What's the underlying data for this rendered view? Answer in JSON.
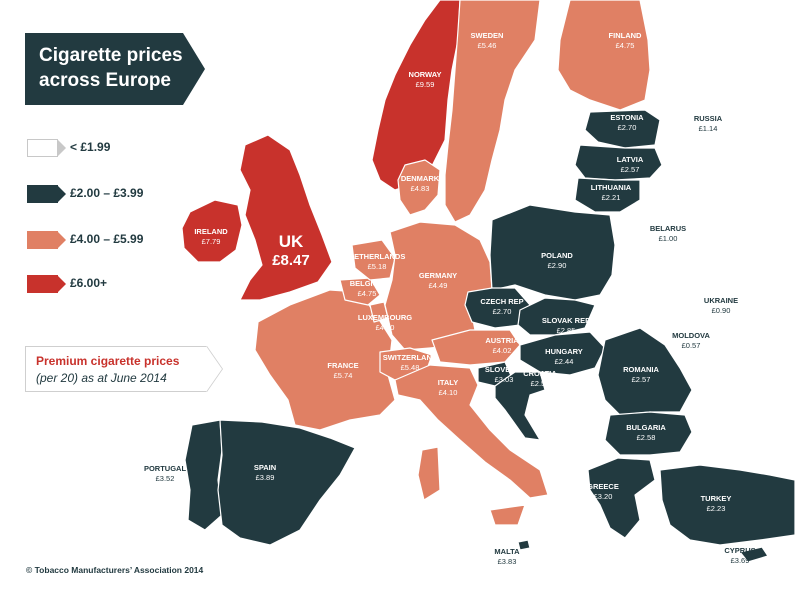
{
  "title": "Cigarette prices across Europe",
  "colors": {
    "under_1_99": "#ffffff",
    "from_2_00_to_3_99": "#223a40",
    "from_4_00_to_5_99": "#e08064",
    "over_6_00": "#c8322c",
    "border": "#c8c8c8",
    "text_dark": "#223a40"
  },
  "legend": [
    {
      "label": "< £1.99",
      "color": "#ffffff"
    },
    {
      "label": "£2.00 – £3.99",
      "color": "#223a40"
    },
    {
      "label": "£4.00 – £5.99",
      "color": "#e08064"
    },
    {
      "label": "£6.00+",
      "color": "#c8322c"
    }
  ],
  "note": {
    "title": "Premium cigarette prices",
    "subtitle": "(per 20) as at June 2014"
  },
  "copyright": "© Tobacco Manufacturers’ Association 2014",
  "countries": [
    {
      "name": "NORWAY",
      "price": "£9.59",
      "band": "over_6_00"
    },
    {
      "name": "SWEDEN",
      "price": "£5.46",
      "band": "from_4_00_to_5_99"
    },
    {
      "name": "FINLAND",
      "price": "£4.75",
      "band": "from_4_00_to_5_99"
    },
    {
      "name": "RUSSIA",
      "price": "£1.14",
      "band": "under_1_99"
    },
    {
      "name": "ESTONIA",
      "price": "£2.70",
      "band": "from_2_00_to_3_99"
    },
    {
      "name": "LATVIA",
      "price": "£2.57",
      "band": "from_2_00_to_3_99"
    },
    {
      "name": "LITHUANIA",
      "price": "£2.21",
      "band": "from_2_00_to_3_99"
    },
    {
      "name": "DENMARK",
      "price": "£4.83",
      "band": "from_4_00_to_5_99"
    },
    {
      "name": "IRELAND",
      "price": "£7.79",
      "band": "over_6_00"
    },
    {
      "name": "UK",
      "price": "£8.47",
      "band": "over_6_00"
    },
    {
      "name": "NETHERLANDS",
      "price": "£5.18",
      "band": "from_4_00_to_5_99"
    },
    {
      "name": "BELGIUM",
      "price": "£4.75",
      "band": "from_4_00_to_5_99"
    },
    {
      "name": "LUXEMBOURG",
      "price": "£4.10",
      "band": "from_4_00_to_5_99"
    },
    {
      "name": "GERMANY",
      "price": "£4.49",
      "band": "from_4_00_to_5_99"
    },
    {
      "name": "POLAND",
      "price": "£2.90",
      "band": "from_2_00_to_3_99"
    },
    {
      "name": "BELARUS",
      "price": "£1.00",
      "band": "under_1_99"
    },
    {
      "name": "UKRAINE",
      "price": "£0.90",
      "band": "under_1_99"
    },
    {
      "name": "CZECH REP",
      "price": "£2.70",
      "band": "from_2_00_to_3_99"
    },
    {
      "name": "SLOVAK REP",
      "price": "£2.85",
      "band": "from_2_00_to_3_99"
    },
    {
      "name": "MOLDOVA",
      "price": "£0.57",
      "band": "under_1_99"
    },
    {
      "name": "AUSTRIA",
      "price": "£4.02",
      "band": "from_4_00_to_5_99"
    },
    {
      "name": "HUNGARY",
      "price": "£2.44",
      "band": "from_2_00_to_3_99"
    },
    {
      "name": "FRANCE",
      "price": "£5.74",
      "band": "from_4_00_to_5_99"
    },
    {
      "name": "SWITZERLAND",
      "price": "£5.48",
      "band": "from_4_00_to_5_99"
    },
    {
      "name": "SLOVENIA",
      "price": "£3.03",
      "band": "from_2_00_to_3_99"
    },
    {
      "name": "CROATIA",
      "price": "£2.58",
      "band": "from_2_00_to_3_99"
    },
    {
      "name": "ROMANIA",
      "price": "£2.57",
      "band": "from_2_00_to_3_99"
    },
    {
      "name": "ITALY",
      "price": "£4.10",
      "band": "from_4_00_to_5_99"
    },
    {
      "name": "BULGARIA",
      "price": "£2.58",
      "band": "from_2_00_to_3_99"
    },
    {
      "name": "PORTUGAL",
      "price": "£3.52",
      "band": "from_2_00_to_3_99"
    },
    {
      "name": "SPAIN",
      "price": "£3.89",
      "band": "from_2_00_to_3_99"
    },
    {
      "name": "GREECE",
      "price": "£3.20",
      "band": "from_2_00_to_3_99"
    },
    {
      "name": "TURKEY",
      "price": "£2.23",
      "band": "from_2_00_to_3_99"
    },
    {
      "name": "MALTA",
      "price": "£3.83",
      "band": "from_2_00_to_3_99"
    },
    {
      "name": "CYPRUS",
      "price": "£3.69",
      "band": "from_2_00_to_3_99"
    }
  ]
}
